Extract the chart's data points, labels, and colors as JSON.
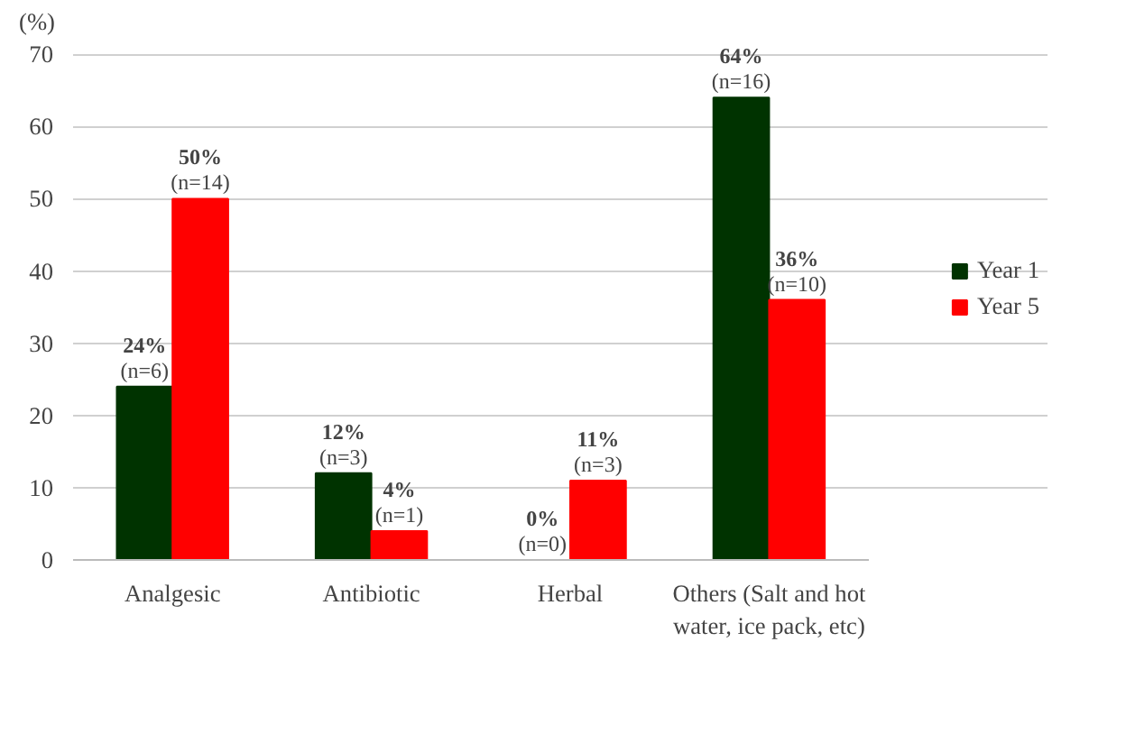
{
  "chart_data": {
    "type": "bar",
    "ylabel": "(%)",
    "categories": [
      "Analgesic",
      "Antibiotic",
      "Herbal",
      "Others (Salt and hot water, ice pack, etc)"
    ],
    "series": [
      {
        "name": "Year 1",
        "color": "#003300",
        "values": [
          24,
          12,
          0,
          64
        ],
        "value_labels": [
          "24%\n(n=6)",
          "12%\n(n=3)",
          "0%\n(n=0)",
          "64%\n(n=16)"
        ]
      },
      {
        "name": "Year 5",
        "color": "#ff0000",
        "values": [
          50,
          4,
          11,
          36
        ],
        "value_labels": [
          "50%\n(n=14)",
          "4%\n(n=1)",
          "11%\n(n=3)",
          "36%\n(n=10)"
        ]
      }
    ],
    "ylim": [
      0,
      70
    ],
    "yticks": [
      0,
      10,
      20,
      30,
      40,
      50,
      60,
      70
    ],
    "grid": "y",
    "legend": "right"
  }
}
